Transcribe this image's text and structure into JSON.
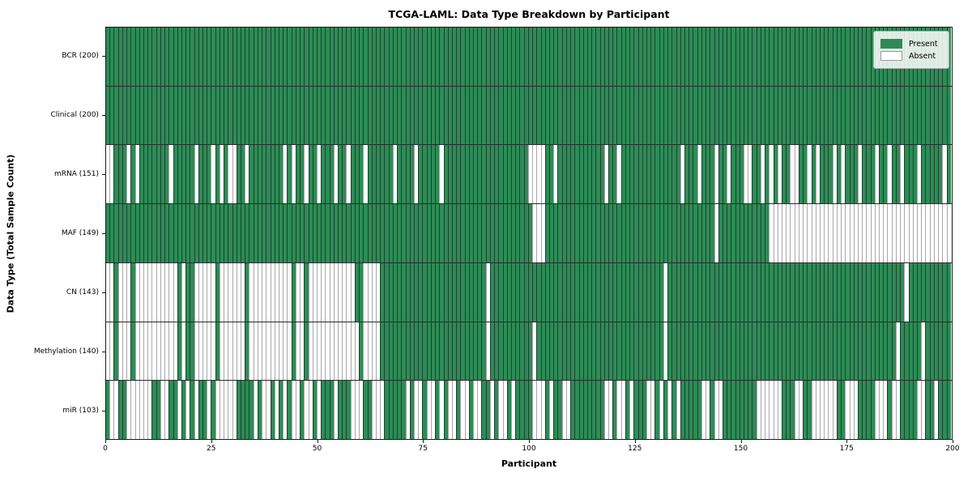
{
  "title": "TCGA-LAML: Data Type Breakdown by Participant",
  "x_axis": {
    "label": "Participant",
    "ticks": [
      0,
      25,
      50,
      75,
      100,
      125,
      150,
      175,
      200
    ]
  },
  "y_axis": {
    "label": "Data Type (Total Sample Count)"
  },
  "legend": {
    "present_label": "Present",
    "absent_label": "Absent"
  },
  "colors": {
    "present": "#2e8b57",
    "absent": "#ffffff",
    "cell_edge_on_green": "#10301e",
    "cell_edge_on_white": "#a8a8a8",
    "spine": "#1a1a1a"
  },
  "chart_data": {
    "type": "heatmap",
    "title": "TCGA-LAML: Data Type Breakdown by Participant",
    "xlabel": "Participant",
    "ylabel": "Data Type (Total Sample Count)",
    "x_range": [
      0,
      200
    ],
    "legend": [
      "Present",
      "Absent"
    ],
    "legend_position": "upper right",
    "grid": false,
    "value_encoding": {
      "1": "Present",
      "0": "Absent"
    },
    "rows": [
      {
        "label": "BCR (200)",
        "name": "BCR",
        "present_count": 200,
        "pattern": "11111111111111111111111111111111111111111111111111111111111111111111111111111111111111111111111111111111111111111111111111111111111111111111111111111111111111111111111111111111111111111111111111111111"
      },
      {
        "label": "Clinical (200)",
        "name": "Clinical",
        "present_count": 200,
        "pattern": "11111111111111111111111111111111111111111111111111111111111111111111111111111111111111111111111111111111111111111111111111111111111111111111111111111111111111111111111111111111111111111111111111111111"
      },
      {
        "label": "mRNA (151)",
        "name": "mRNA",
        "present_count": 151,
        "pattern": "00111010111111101111101110101001101111111101011011011101101110111111011110111110111111111111111111110000110111111111110110111111111111110111011101101110011010101100110101110101110111011011011101111101"
      },
      {
        "label": "MAF (149)",
        "name": "MAF",
        "present_count": 149,
        "pattern": "11111111111111111111111111111111111111111111111111111111111111111111111111111111111111111111111111111000111111111111111111111111111111111111111101111111111110000000000000000000000000000000000000000000"
      },
      {
        "label": "CN (143)",
        "name": "CN",
        "present_count": 143,
        "pattern": "00100010000000000101100000100000010000000000100100000000000110000111111111111111111111111101111111111111111111111111111111111111111101111111111111111111111111111111111111111111111111111111101111111111"
      },
      {
        "label": "Methylation (140)",
        "name": "Methylation",
        "present_count": 140,
        "pattern": "00100010000000000101100000100000010000000000100100000000000010000111111111111111111111111101111111111011111111111111111111111111111101111111111111111111111111111111111111111111111111111110111110111111"
      },
      {
        "label": "miR (103)",
        "name": "miR",
        "present_count": 103,
        "pattern": "10011000000110011010101101000001111010010101001001011101110001100011111010010010100100100110100101111000101100111111110010010111001010101111100100111111110000001110011000000110001111000100111100110111"
      }
    ]
  }
}
